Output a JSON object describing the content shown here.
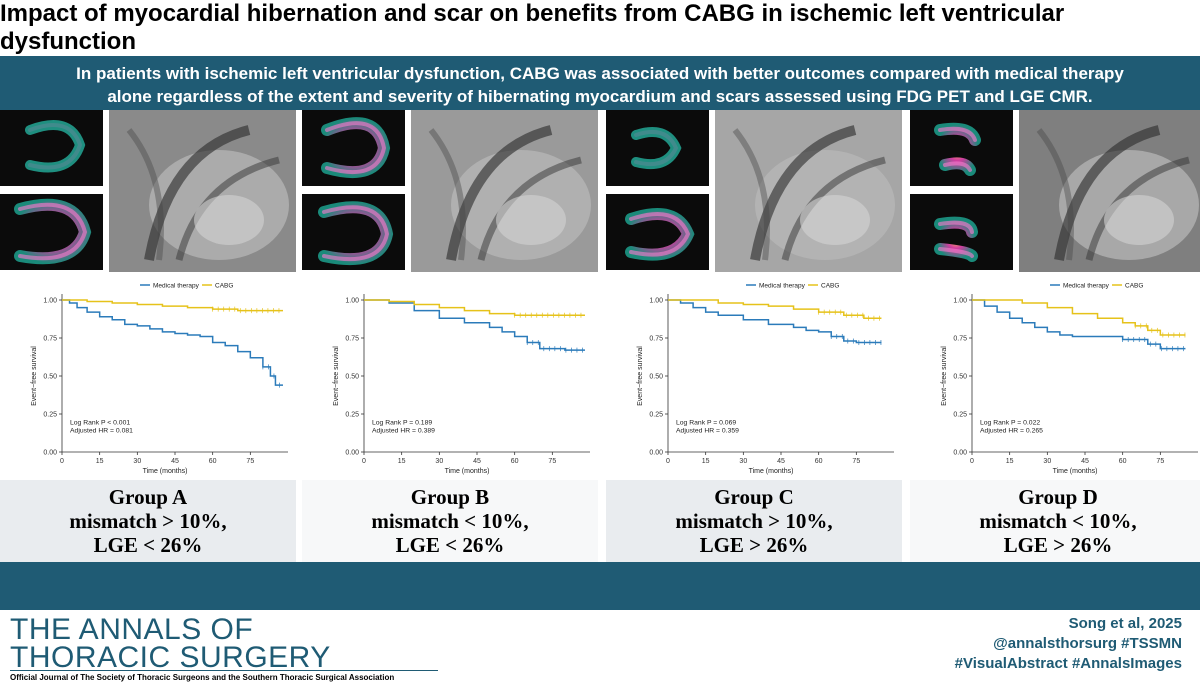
{
  "title": "Impact of myocardial hibernation and scar on benefits from CABG in ischemic left ventricular dysfunction",
  "banner": {
    "line1": "In patients with ischemic left ventricular dysfunction, CABG was associated with better outcomes compared with medical therapy",
    "line2": "alone regardless of the extent and severity of hibernating myocardium and scars assessed using FDG PET and LGE CMR."
  },
  "colors": {
    "brand": "#1f5b74",
    "medical": "#2b7bba",
    "cabg": "#e6c21a",
    "group_bg_alt": "#e9ecef"
  },
  "panels": [
    {
      "group": "Group A",
      "line2": "mismatch > 10%,",
      "line3": "LGE < 26%",
      "logrank": "Log Rank P < 0.001",
      "hr": "Adjusted HR = 0.081",
      "legend": true
    },
    {
      "group": "Group B",
      "line2": "mismatch < 10%,",
      "line3": "LGE < 26%",
      "logrank": "Log Rank P = 0.189",
      "hr": "Adjusted HR = 0.389",
      "legend": false
    },
    {
      "group": "Group  C",
      "line2": "mismatch > 10%,",
      "line3": "LGE > 26%",
      "logrank": "Log Rank P = 0.069",
      "hr": "Adjusted HR = 0.359",
      "legend": true
    },
    {
      "group": "Group  D",
      "line2": "mismatch < 10%,",
      "line3": "LGE > 26%",
      "logrank": "Log Rank P = 0.022",
      "hr": "Adjusted HR = 0.265",
      "legend": true
    }
  ],
  "chart_data": [
    {
      "type": "line",
      "title": "Group A",
      "xlabel": "Time (months)",
      "ylabel": "Event−free survival",
      "xlim": [
        0,
        90
      ],
      "ylim": [
        0,
        1
      ],
      "xticks": [
        0,
        15,
        30,
        45,
        60,
        75
      ],
      "yticks": [
        "0.00",
        "0.25",
        "0.50",
        "0.75",
        "1.00"
      ],
      "legend": [
        "Medical therapy",
        "CABG"
      ],
      "series": [
        {
          "name": "Medical therapy",
          "points": [
            [
              0,
              1
            ],
            [
              3,
              0.98
            ],
            [
              6,
              0.95
            ],
            [
              10,
              0.92
            ],
            [
              15,
              0.89
            ],
            [
              20,
              0.87
            ],
            [
              25,
              0.84
            ],
            [
              30,
              0.83
            ],
            [
              35,
              0.81
            ],
            [
              40,
              0.79
            ],
            [
              45,
              0.78
            ],
            [
              50,
              0.77
            ],
            [
              55,
              0.76
            ],
            [
              60,
              0.72
            ],
            [
              65,
              0.7
            ],
            [
              70,
              0.66
            ],
            [
              75,
              0.62
            ],
            [
              80,
              0.56
            ],
            [
              83,
              0.5
            ],
            [
              85,
              0.44
            ],
            [
              88,
              0.44
            ]
          ]
        },
        {
          "name": "CABG",
          "points": [
            [
              0,
              1
            ],
            [
              10,
              0.99
            ],
            [
              20,
              0.98
            ],
            [
              30,
              0.97
            ],
            [
              40,
              0.96
            ],
            [
              50,
              0.95
            ],
            [
              60,
              0.94
            ],
            [
              70,
              0.93
            ],
            [
              80,
              0.93
            ],
            [
              88,
              0.93
            ]
          ]
        }
      ]
    },
    {
      "type": "line",
      "title": "Group B",
      "xlabel": "Time (months)",
      "ylabel": "Event−free survival",
      "xlim": [
        0,
        90
      ],
      "ylim": [
        0,
        1
      ],
      "xticks": [
        0,
        15,
        30,
        45,
        60,
        75
      ],
      "yticks": [
        "0.00",
        "0.25",
        "0.50",
        "0.75",
        "1.00"
      ],
      "series": [
        {
          "name": "Medical therapy",
          "points": [
            [
              0,
              1
            ],
            [
              10,
              0.98
            ],
            [
              20,
              0.93
            ],
            [
              30,
              0.88
            ],
            [
              40,
              0.85
            ],
            [
              50,
              0.82
            ],
            [
              55,
              0.79
            ],
            [
              60,
              0.76
            ],
            [
              65,
              0.72
            ],
            [
              70,
              0.68
            ],
            [
              80,
              0.67
            ],
            [
              88,
              0.67
            ]
          ]
        },
        {
          "name": "CABG",
          "points": [
            [
              0,
              1
            ],
            [
              10,
              0.99
            ],
            [
              20,
              0.97
            ],
            [
              30,
              0.95
            ],
            [
              40,
              0.93
            ],
            [
              50,
              0.91
            ],
            [
              60,
              0.9
            ],
            [
              70,
              0.9
            ],
            [
              80,
              0.9
            ],
            [
              88,
              0.9
            ]
          ]
        }
      ]
    },
    {
      "type": "line",
      "title": "Group C",
      "xlabel": "Time (months)",
      "ylabel": "Event−free survival",
      "xlim": [
        0,
        90
      ],
      "ylim": [
        0,
        1
      ],
      "xticks": [
        0,
        15,
        30,
        45,
        60,
        75
      ],
      "yticks": [
        "0.00",
        "0.25",
        "0.50",
        "0.75",
        "1.00"
      ],
      "legend": [
        "Medical therapy",
        "CABG"
      ],
      "series": [
        {
          "name": "Medical therapy",
          "points": [
            [
              0,
              1
            ],
            [
              5,
              0.98
            ],
            [
              10,
              0.95
            ],
            [
              15,
              0.92
            ],
            [
              20,
              0.9
            ],
            [
              30,
              0.87
            ],
            [
              40,
              0.84
            ],
            [
              50,
              0.82
            ],
            [
              55,
              0.8
            ],
            [
              60,
              0.79
            ],
            [
              65,
              0.76
            ],
            [
              70,
              0.73
            ],
            [
              75,
              0.72
            ],
            [
              85,
              0.72
            ]
          ]
        },
        {
          "name": "CABG",
          "points": [
            [
              0,
              1
            ],
            [
              10,
              1.0
            ],
            [
              20,
              0.98
            ],
            [
              30,
              0.97
            ],
            [
              40,
              0.96
            ],
            [
              50,
              0.94
            ],
            [
              60,
              0.92
            ],
            [
              70,
              0.9
            ],
            [
              78,
              0.88
            ],
            [
              85,
              0.88
            ]
          ]
        }
      ]
    },
    {
      "type": "line",
      "title": "Group D",
      "xlabel": "Time (months)",
      "ylabel": "Event−free survival",
      "xlim": [
        0,
        90
      ],
      "ylim": [
        0,
        1
      ],
      "xticks": [
        0,
        15,
        30,
        45,
        60,
        75
      ],
      "yticks": [
        "0.00",
        "0.25",
        "0.50",
        "0.75",
        "1.00"
      ],
      "legend": [
        "Medical therapy",
        "CABG"
      ],
      "series": [
        {
          "name": "Medical therapy",
          "points": [
            [
              0,
              1
            ],
            [
              5,
              0.96
            ],
            [
              10,
              0.92
            ],
            [
              15,
              0.88
            ],
            [
              20,
              0.85
            ],
            [
              25,
              0.82
            ],
            [
              30,
              0.79
            ],
            [
              35,
              0.77
            ],
            [
              40,
              0.76
            ],
            [
              55,
              0.76
            ],
            [
              60,
              0.74
            ],
            [
              70,
              0.71
            ],
            [
              75,
              0.68
            ],
            [
              85,
              0.68
            ]
          ]
        },
        {
          "name": "CABG",
          "points": [
            [
              0,
              1
            ],
            [
              10,
              1.0
            ],
            [
              20,
              0.98
            ],
            [
              30,
              0.95
            ],
            [
              40,
              0.91
            ],
            [
              50,
              0.88
            ],
            [
              60,
              0.85
            ],
            [
              65,
              0.83
            ],
            [
              70,
              0.8
            ],
            [
              75,
              0.77
            ],
            [
              85,
              0.77
            ]
          ]
        }
      ]
    }
  ],
  "footer": {
    "journal_line1": "THE ANNALS OF",
    "journal_line2": "THORACIC SURGERY",
    "journal_sub": "Official Journal of The Society of Thoracic Surgeons and the Southern Thoracic Surgical Association",
    "citation": "Song et al, 2025",
    "handle": "@annalsthorsurg #TSSMN",
    "tags": "#VisualAbstract #AnnalsImages"
  }
}
